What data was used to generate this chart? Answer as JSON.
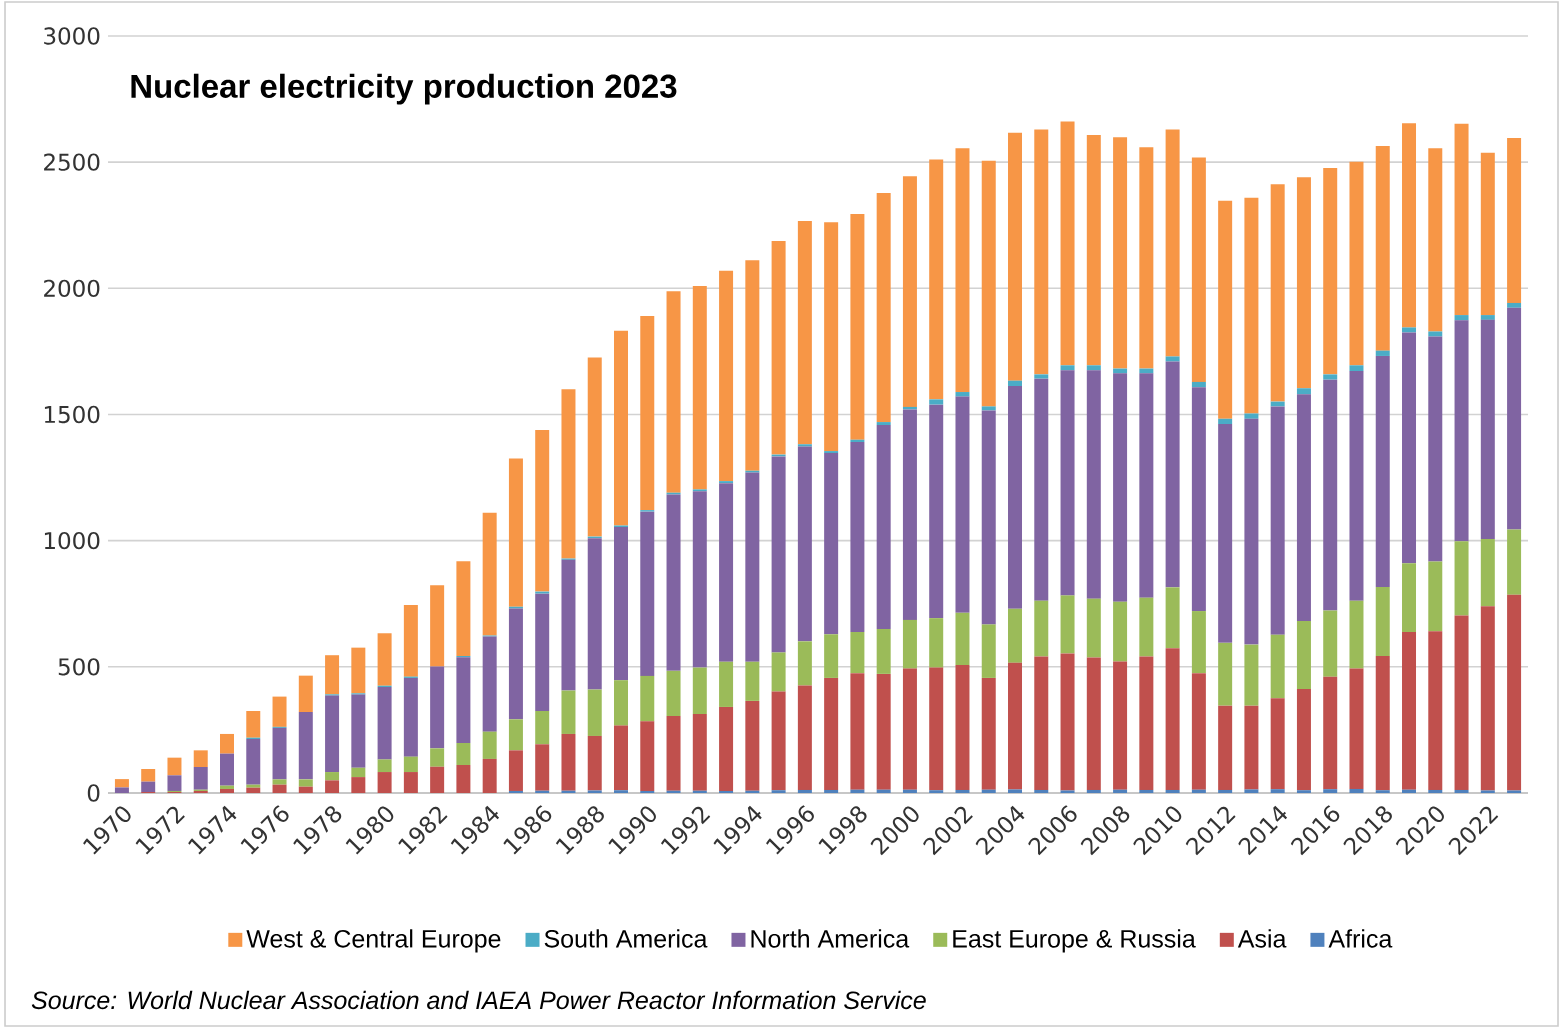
{
  "chart_data": {
    "type": "bar",
    "title": "Nuclear electricity production 2023",
    "stacked": true,
    "categories": [
      "1970",
      null,
      "1972",
      null,
      "1974",
      null,
      "1976",
      null,
      "1978",
      null,
      "1980",
      null,
      "1982",
      null,
      "1984",
      null,
      "1986",
      null,
      "1988",
      null,
      "1990",
      null,
      "1992",
      null,
      "1994",
      null,
      "1996",
      null,
      "1998",
      null,
      "2000",
      null,
      "2002",
      null,
      "2004",
      null,
      "2006",
      null,
      "2008",
      null,
      "2010",
      null,
      "2012",
      null,
      "2014",
      null,
      "2016",
      null,
      "2018",
      null,
      "2020",
      null,
      "2022",
      null
    ],
    "series": [
      {
        "name": "Africa",
        "color": "#4f81bd",
        "values": [
          0,
          0,
          0,
          0,
          0,
          0,
          0,
          0,
          0,
          0,
          0,
          0,
          0,
          0,
          0,
          8,
          9,
          9,
          10,
          11,
          8,
          9,
          9,
          8,
          9,
          11,
          12,
          12,
          13,
          13,
          13,
          11,
          12,
          13,
          14,
          12,
          10,
          12,
          13,
          12,
          12,
          13,
          12,
          14,
          15,
          11,
          15,
          16,
          11,
          13,
          12,
          12,
          10,
          10
        ]
      },
      {
        "name": "Asia",
        "color": "#c0504d",
        "values": [
          0,
          4,
          4,
          8,
          16,
          21,
          33,
          25,
          50,
          63,
          83,
          83,
          104,
          111,
          135,
          161,
          184,
          225,
          216,
          256,
          276,
          296,
          304,
          333,
          356,
          391,
          414,
          444,
          462,
          459,
          480,
          486,
          495,
          443,
          502,
          529,
          543,
          525,
          508,
          529,
          562,
          462,
          334,
          332,
          360,
          401,
          446,
          477,
          532,
          625,
          629,
          691,
          730,
          776
        ]
      },
      {
        "name": "East Europe & Russia",
        "color": "#9bbb59",
        "values": [
          0,
          0,
          4,
          5,
          13,
          12,
          21,
          29,
          33,
          37,
          50,
          61,
          73,
          87,
          108,
          123,
          132,
          172,
          184,
          180,
          180,
          179,
          184,
          179,
          155,
          155,
          175,
          173,
          163,
          178,
          193,
          196,
          207,
          212,
          214,
          221,
          230,
          233,
          237,
          233,
          241,
          246,
          249,
          242,
          252,
          270,
          262,
          269,
          273,
          272,
          276,
          295,
          267,
          258
        ]
      },
      {
        "name": "North America",
        "color": "#8064a2",
        "values": [
          22,
          41,
          62,
          90,
          127,
          181,
          204,
          267,
          303,
          290,
          287,
          312,
          324,
          340,
          377,
          439,
          465,
          518,
          600,
          607,
          651,
          699,
          699,
          708,
          750,
          777,
          772,
          718,
          753,
          808,
          834,
          846,
          857,
          848,
          883,
          880,
          892,
          905,
          905,
          889,
          895,
          887,
          867,
          895,
          905,
          898,
          915,
          910,
          916,
          915,
          892,
          875,
          868,
          879
        ]
      },
      {
        "name": "South America",
        "color": "#4bacc6",
        "values": [
          0,
          0,
          0,
          0,
          0,
          5,
          4,
          0,
          5,
          5,
          5,
          5,
          0,
          5,
          4,
          7,
          8,
          5,
          6,
          6,
          6,
          7,
          7,
          8,
          7,
          7,
          9,
          8,
          9,
          12,
          10,
          21,
          18,
          16,
          21,
          17,
          20,
          20,
          19,
          19,
          20,
          21,
          21,
          21,
          19,
          24,
          21,
          23,
          21,
          20,
          20,
          21,
          19,
          19
        ]
      },
      {
        "name": "West & Central Europe",
        "color": "#f79646",
        "values": [
          33,
          50,
          70,
          66,
          78,
          106,
          120,
          144,
          155,
          181,
          208,
          284,
          322,
          375,
          487,
          588,
          641,
          671,
          710,
          772,
          769,
          798,
          806,
          834,
          834,
          847,
          885,
          907,
          895,
          908,
          914,
          951,
          966,
          974,
          983,
          970,
          966,
          913,
          917,
          877,
          899,
          889,
          864,
          855,
          861,
          836,
          818,
          807,
          811,
          809,
          726,
          758,
          643,
          654
        ]
      }
    ],
    "ylim": [
      0,
      3000
    ],
    "yticks": [
      0,
      500,
      1000,
      1500,
      2000,
      2500,
      3000
    ],
    "grid": "y",
    "legend": "bottom",
    "annotations": [
      "Source: World Nuclear Association and IAEA Power Reactor Information Service"
    ]
  }
}
